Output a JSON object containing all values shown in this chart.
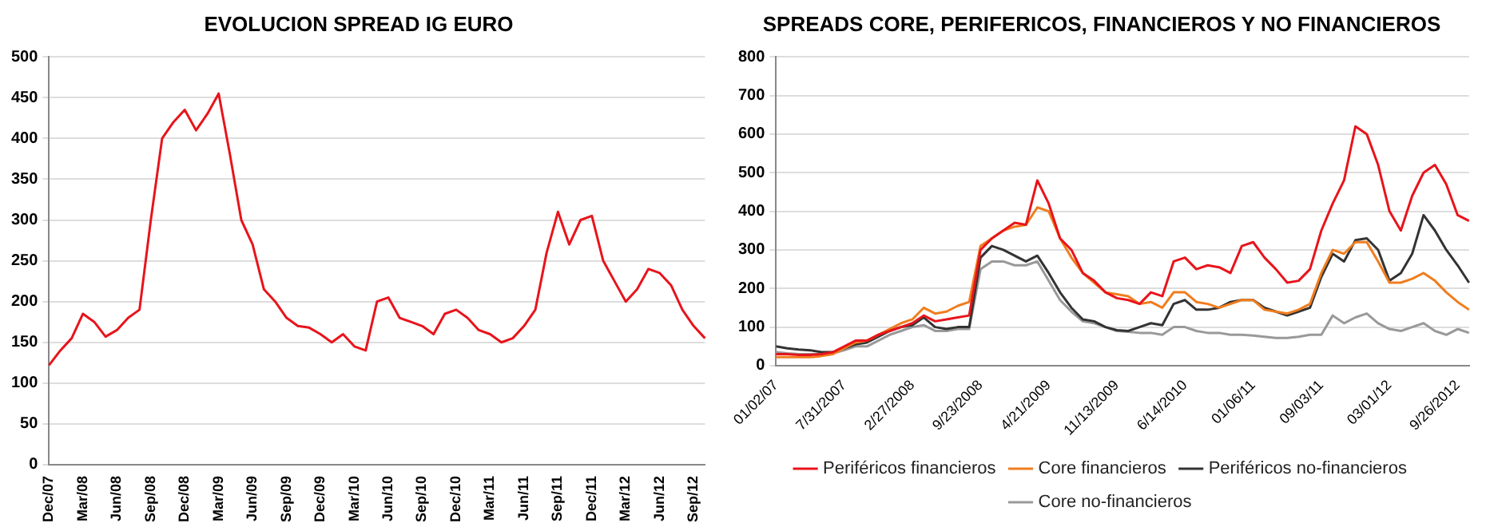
{
  "chart_data": [
    {
      "type": "line",
      "title": "EVOLUCION SPREAD IG EURO",
      "categories": [
        "Dec/07",
        null,
        null,
        "Mar/08",
        null,
        null,
        "Jun/08",
        null,
        null,
        "Sep/08",
        null,
        null,
        "Dec/08",
        null,
        null,
        "Mar/09",
        null,
        null,
        "Jun/09",
        null,
        null,
        "Sep/09",
        null,
        null,
        "Dec/09",
        null,
        null,
        "Mar/10",
        null,
        null,
        "Jun/10",
        null,
        null,
        "Sep/10",
        null,
        null,
        "Dec/10",
        null,
        null,
        "Mar/11",
        null,
        null,
        "Jun/11",
        null,
        null,
        "Sep/11",
        null,
        null,
        "Dec/11",
        null,
        null,
        "Mar/12",
        null,
        null,
        "Jun/12",
        null,
        null,
        "Sep/12",
        null
      ],
      "series": [
        {
          "color": "#e8141b",
          "values": [
            122,
            140,
            155,
            185,
            175,
            157,
            165,
            180,
            190,
            300,
            400,
            420,
            435,
            410,
            430,
            455,
            380,
            300,
            270,
            215,
            200,
            180,
            170,
            168,
            160,
            150,
            160,
            145,
            140,
            200,
            205,
            180,
            175,
            170,
            160,
            185,
            190,
            180,
            165,
            160,
            150,
            155,
            170,
            190,
            260,
            310,
            270,
            300,
            305,
            250,
            225,
            200,
            215,
            240,
            235,
            220,
            190,
            170,
            155
          ]
        }
      ],
      "ylim": [
        0,
        500
      ],
      "yticks": [
        0,
        50,
        100,
        150,
        200,
        250,
        300,
        350,
        400,
        450,
        500
      ],
      "grid": "y",
      "legend": false,
      "marker": "none",
      "line_style": "solid"
    },
    {
      "type": "line",
      "title": "SPREADS CORE, PERIFERICOS, FINANCIEROS Y NO FINANCIEROS",
      "categories": [
        "01/02/07",
        null,
        null,
        null,
        null,
        null,
        "7/31/2007",
        null,
        null,
        null,
        null,
        null,
        "2/27/2008",
        null,
        null,
        null,
        null,
        null,
        "9/23/2008",
        null,
        null,
        null,
        null,
        null,
        "4/21/2009",
        null,
        null,
        null,
        null,
        null,
        "11/13/2009",
        null,
        null,
        null,
        null,
        null,
        "6/14/2010",
        null,
        null,
        null,
        null,
        null,
        "01/06/11",
        null,
        null,
        null,
        null,
        null,
        "09/03/11",
        null,
        null,
        null,
        null,
        null,
        "03/01/12",
        null,
        null,
        null,
        null,
        null,
        "9/26/2012",
        null
      ],
      "series": [
        {
          "name": "Periféricos financieros",
          "color": "#e8141b",
          "values": [
            30,
            30,
            28,
            28,
            30,
            35,
            50,
            65,
            65,
            80,
            90,
            100,
            110,
            130,
            115,
            120,
            125,
            130,
            300,
            330,
            350,
            370,
            365,
            480,
            420,
            330,
            300,
            240,
            220,
            190,
            175,
            170,
            160,
            190,
            180,
            270,
            280,
            250,
            260,
            255,
            240,
            310,
            320,
            280,
            250,
            215,
            220,
            250,
            350,
            420,
            480,
            620,
            600,
            520,
            400,
            350,
            440,
            500,
            520,
            470,
            390,
            375
          ]
        },
        {
          "name": "Core financieros",
          "color": "#f07d1e",
          "values": [
            22,
            22,
            22,
            22,
            25,
            30,
            45,
            60,
            65,
            80,
            95,
            110,
            120,
            150,
            135,
            140,
            155,
            165,
            310,
            330,
            350,
            360,
            365,
            410,
            400,
            330,
            280,
            240,
            215,
            190,
            185,
            180,
            160,
            165,
            150,
            190,
            190,
            165,
            160,
            150,
            160,
            170,
            170,
            145,
            140,
            135,
            145,
            160,
            240,
            300,
            290,
            320,
            320,
            270,
            215,
            215,
            225,
            240,
            220,
            190,
            165,
            145
          ]
        },
        {
          "name": "Periféricos no-financieros",
          "color": "#333333",
          "values": [
            50,
            45,
            42,
            40,
            35,
            35,
            45,
            55,
            60,
            75,
            90,
            100,
            105,
            125,
            100,
            95,
            100,
            100,
            280,
            310,
            300,
            285,
            270,
            285,
            240,
            190,
            150,
            120,
            115,
            100,
            92,
            90,
            100,
            110,
            105,
            160,
            170,
            145,
            145,
            150,
            165,
            170,
            170,
            150,
            140,
            130,
            140,
            150,
            230,
            290,
            270,
            325,
            330,
            300,
            220,
            240,
            290,
            390,
            350,
            300,
            260,
            215
          ]
        },
        {
          "name": "Core no-financieros",
          "color": "#999999",
          "values": [
            35,
            32,
            30,
            30,
            30,
            32,
            40,
            50,
            50,
            65,
            80,
            90,
            100,
            105,
            90,
            90,
            95,
            95,
            250,
            270,
            270,
            260,
            260,
            270,
            220,
            170,
            140,
            115,
            110,
            100,
            90,
            88,
            85,
            85,
            80,
            100,
            100,
            90,
            85,
            85,
            80,
            80,
            78,
            75,
            72,
            72,
            75,
            80,
            80,
            130,
            110,
            125,
            135,
            110,
            95,
            90,
            100,
            110,
            90,
            80,
            95,
            85
          ]
        }
      ],
      "ylim": [
        0,
        800
      ],
      "yticks": [
        0,
        100,
        200,
        300,
        400,
        500,
        600,
        700,
        800
      ],
      "grid": "y",
      "legend": "bottom",
      "marker": "none",
      "line_style": "solid"
    }
  ]
}
